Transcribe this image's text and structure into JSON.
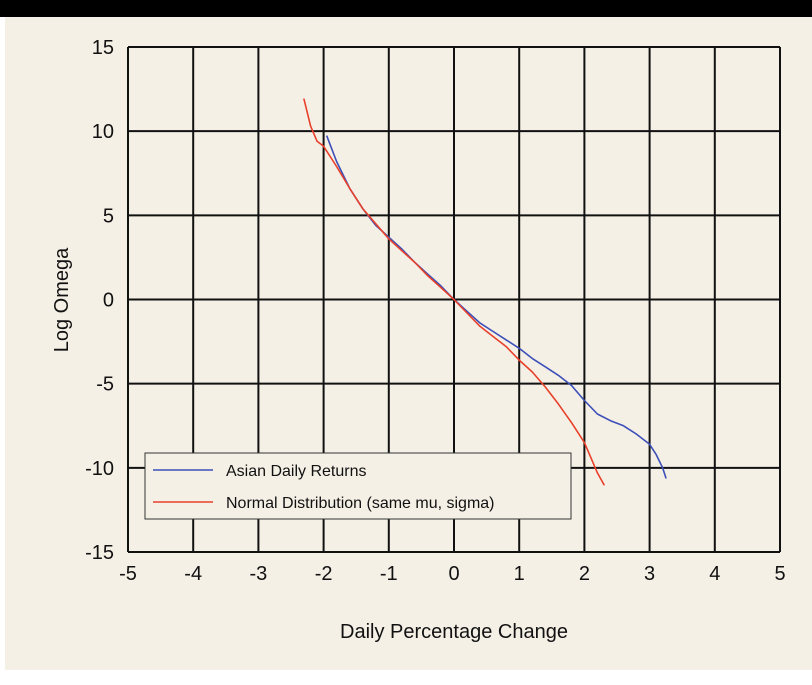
{
  "chart_data": {
    "type": "line",
    "xlabel": "Daily Percentage Change",
    "ylabel": "Log Omega",
    "xlim": [
      -5,
      5
    ],
    "ylim": [
      -15,
      15
    ],
    "x_ticks": [
      "-5",
      "-4",
      "-3",
      "-2",
      "-1",
      "0",
      "1",
      "2",
      "3",
      "4",
      "5"
    ],
    "y_ticks": [
      "15",
      "10",
      "5",
      "0",
      "-5",
      "-10",
      "-15"
    ],
    "grid": true,
    "legend_position": "bottom-left",
    "series": [
      {
        "name": "Asian Daily Returns",
        "color": "#3c4fb8",
        "x": [
          -1.95,
          -1.8,
          -1.6,
          -1.4,
          -1.2,
          -1.0,
          -0.8,
          -0.6,
          -0.4,
          -0.2,
          0.0,
          0.2,
          0.4,
          0.6,
          0.8,
          1.0,
          1.2,
          1.4,
          1.6,
          1.8,
          2.0,
          2.2,
          2.4,
          2.6,
          2.8,
          3.0,
          3.1,
          3.2,
          3.25
        ],
        "y": [
          9.7,
          8.2,
          6.6,
          5.4,
          4.4,
          3.7,
          3.0,
          2.2,
          1.5,
          0.8,
          0.0,
          -0.7,
          -1.4,
          -1.9,
          -2.4,
          -2.9,
          -3.5,
          -4.0,
          -4.5,
          -5.1,
          -6.0,
          -6.8,
          -7.2,
          -7.5,
          -8.0,
          -8.6,
          -9.2,
          -10.0,
          -10.6
        ]
      },
      {
        "name": "Normal Distribution (same mu, sigma)",
        "color": "#e8402a",
        "x": [
          -2.3,
          -2.2,
          -2.1,
          -2.0,
          -1.8,
          -1.6,
          -1.4,
          -1.2,
          -1.0,
          -0.8,
          -0.6,
          -0.4,
          -0.2,
          0.0,
          0.2,
          0.4,
          0.6,
          0.8,
          1.0,
          1.2,
          1.4,
          1.6,
          1.8,
          2.0,
          2.1,
          2.2,
          2.3
        ],
        "y": [
          11.9,
          10.3,
          9.4,
          9.1,
          7.9,
          6.6,
          5.4,
          4.5,
          3.6,
          2.9,
          2.2,
          1.4,
          0.7,
          0.0,
          -0.8,
          -1.6,
          -2.2,
          -2.8,
          -3.6,
          -4.3,
          -5.2,
          -6.2,
          -7.3,
          -8.5,
          -9.4,
          -10.3,
          -11.0
        ]
      }
    ]
  }
}
